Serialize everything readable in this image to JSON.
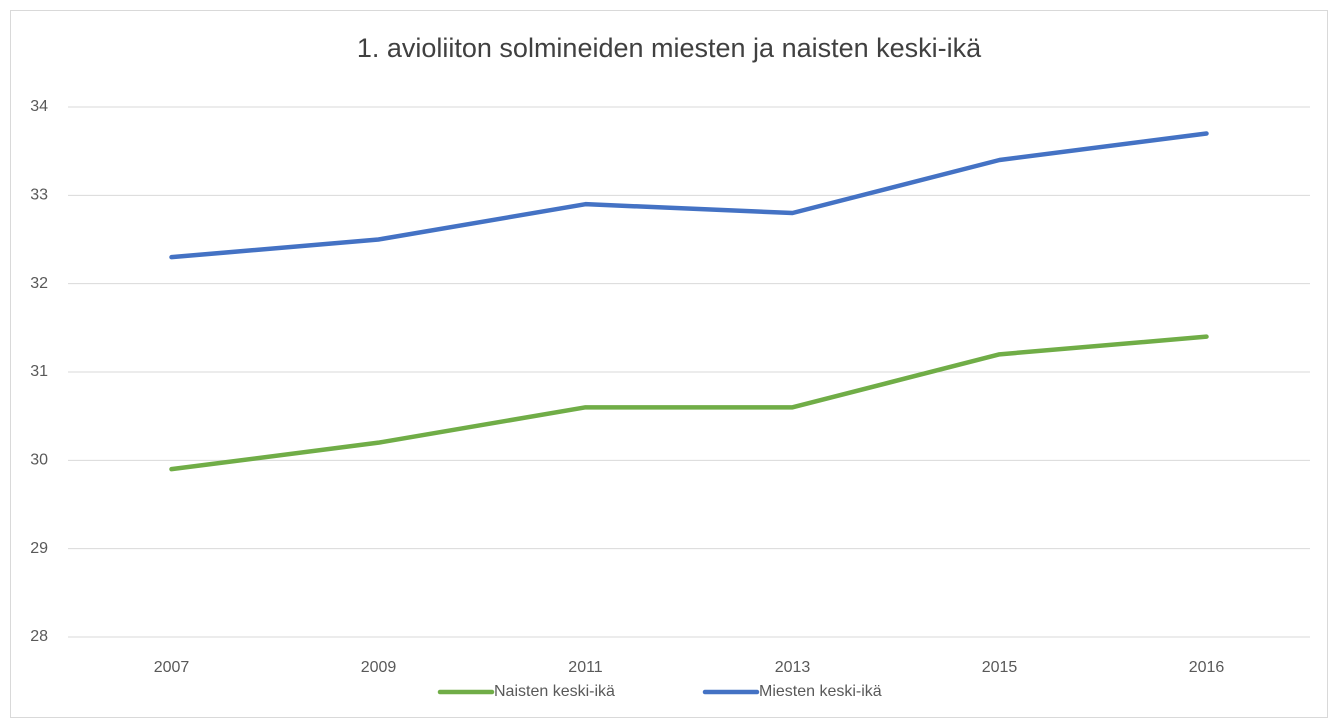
{
  "chart_data": {
    "type": "line",
    "title": "1. avioliiton solmineiden miesten ja naisten keski-ikä",
    "categories": [
      "2007",
      "2009",
      "2011",
      "2013",
      "2015",
      "2016"
    ],
    "series": [
      {
        "name": "Naisten keski-ikä",
        "color": "#70ad47",
        "values": [
          29.9,
          30.2,
          30.6,
          30.6,
          31.2,
          31.4
        ]
      },
      {
        "name": "Miesten keski-ikä",
        "color": "#4472c4",
        "values": [
          32.3,
          32.5,
          32.9,
          32.8,
          33.4,
          33.7
        ]
      }
    ],
    "ylim": [
      28,
      34
    ],
    "yticks": [
      28,
      29,
      30,
      31,
      32,
      33,
      34
    ],
    "grid": true,
    "legend": "bottom"
  }
}
